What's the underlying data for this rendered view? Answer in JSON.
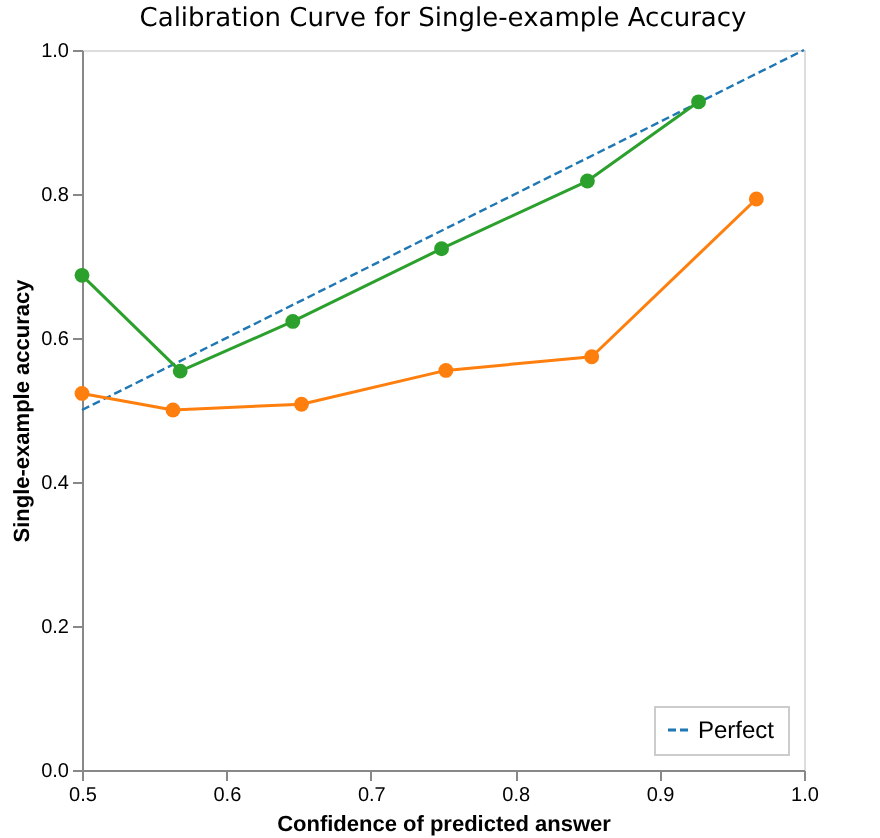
{
  "chart_data": {
    "type": "line",
    "title": "Calibration Curve for Single-example Accuracy",
    "xlabel": "Confidence of predicted answer",
    "ylabel": "Single-example accuracy",
    "xlim": [
      0.5,
      1.0
    ],
    "ylim": [
      0.0,
      1.0
    ],
    "xticks": [
      0.5,
      0.6,
      0.7,
      0.8,
      0.9,
      {
        "value": 1,
        "label": "1.0"
      }
    ],
    "yticks": [
      {
        "value": 0,
        "label": "0.0"
      },
      0.2,
      0.4,
      0.6,
      0.8,
      {
        "value": 1,
        "label": "1.0"
      }
    ],
    "grid": false,
    "legend": "bottom right",
    "series": [
      {
        "name": "Perfect",
        "color": "#1f77b4",
        "x": [
          0.5,
          1.0
        ],
        "values": [
          0.5,
          1.0
        ],
        "line_style": "dashed",
        "marker": "none"
      },
      {
        "color": "#ff7f0e",
        "x": [
          0.5,
          0.563,
          0.652,
          0.752,
          0.853,
          0.967
        ],
        "values": [
          0.523,
          0.5,
          0.508,
          0.555,
          0.574,
          0.793
        ],
        "line_style": "solid",
        "marker": "circle"
      },
      {
        "color": "#2ca02c",
        "x": [
          0.5,
          0.568,
          0.646,
          0.749,
          0.85,
          0.927
        ],
        "values": [
          0.687,
          0.554,
          0.623,
          0.724,
          0.818,
          0.928
        ],
        "line_style": "solid",
        "marker": "circle"
      }
    ]
  }
}
